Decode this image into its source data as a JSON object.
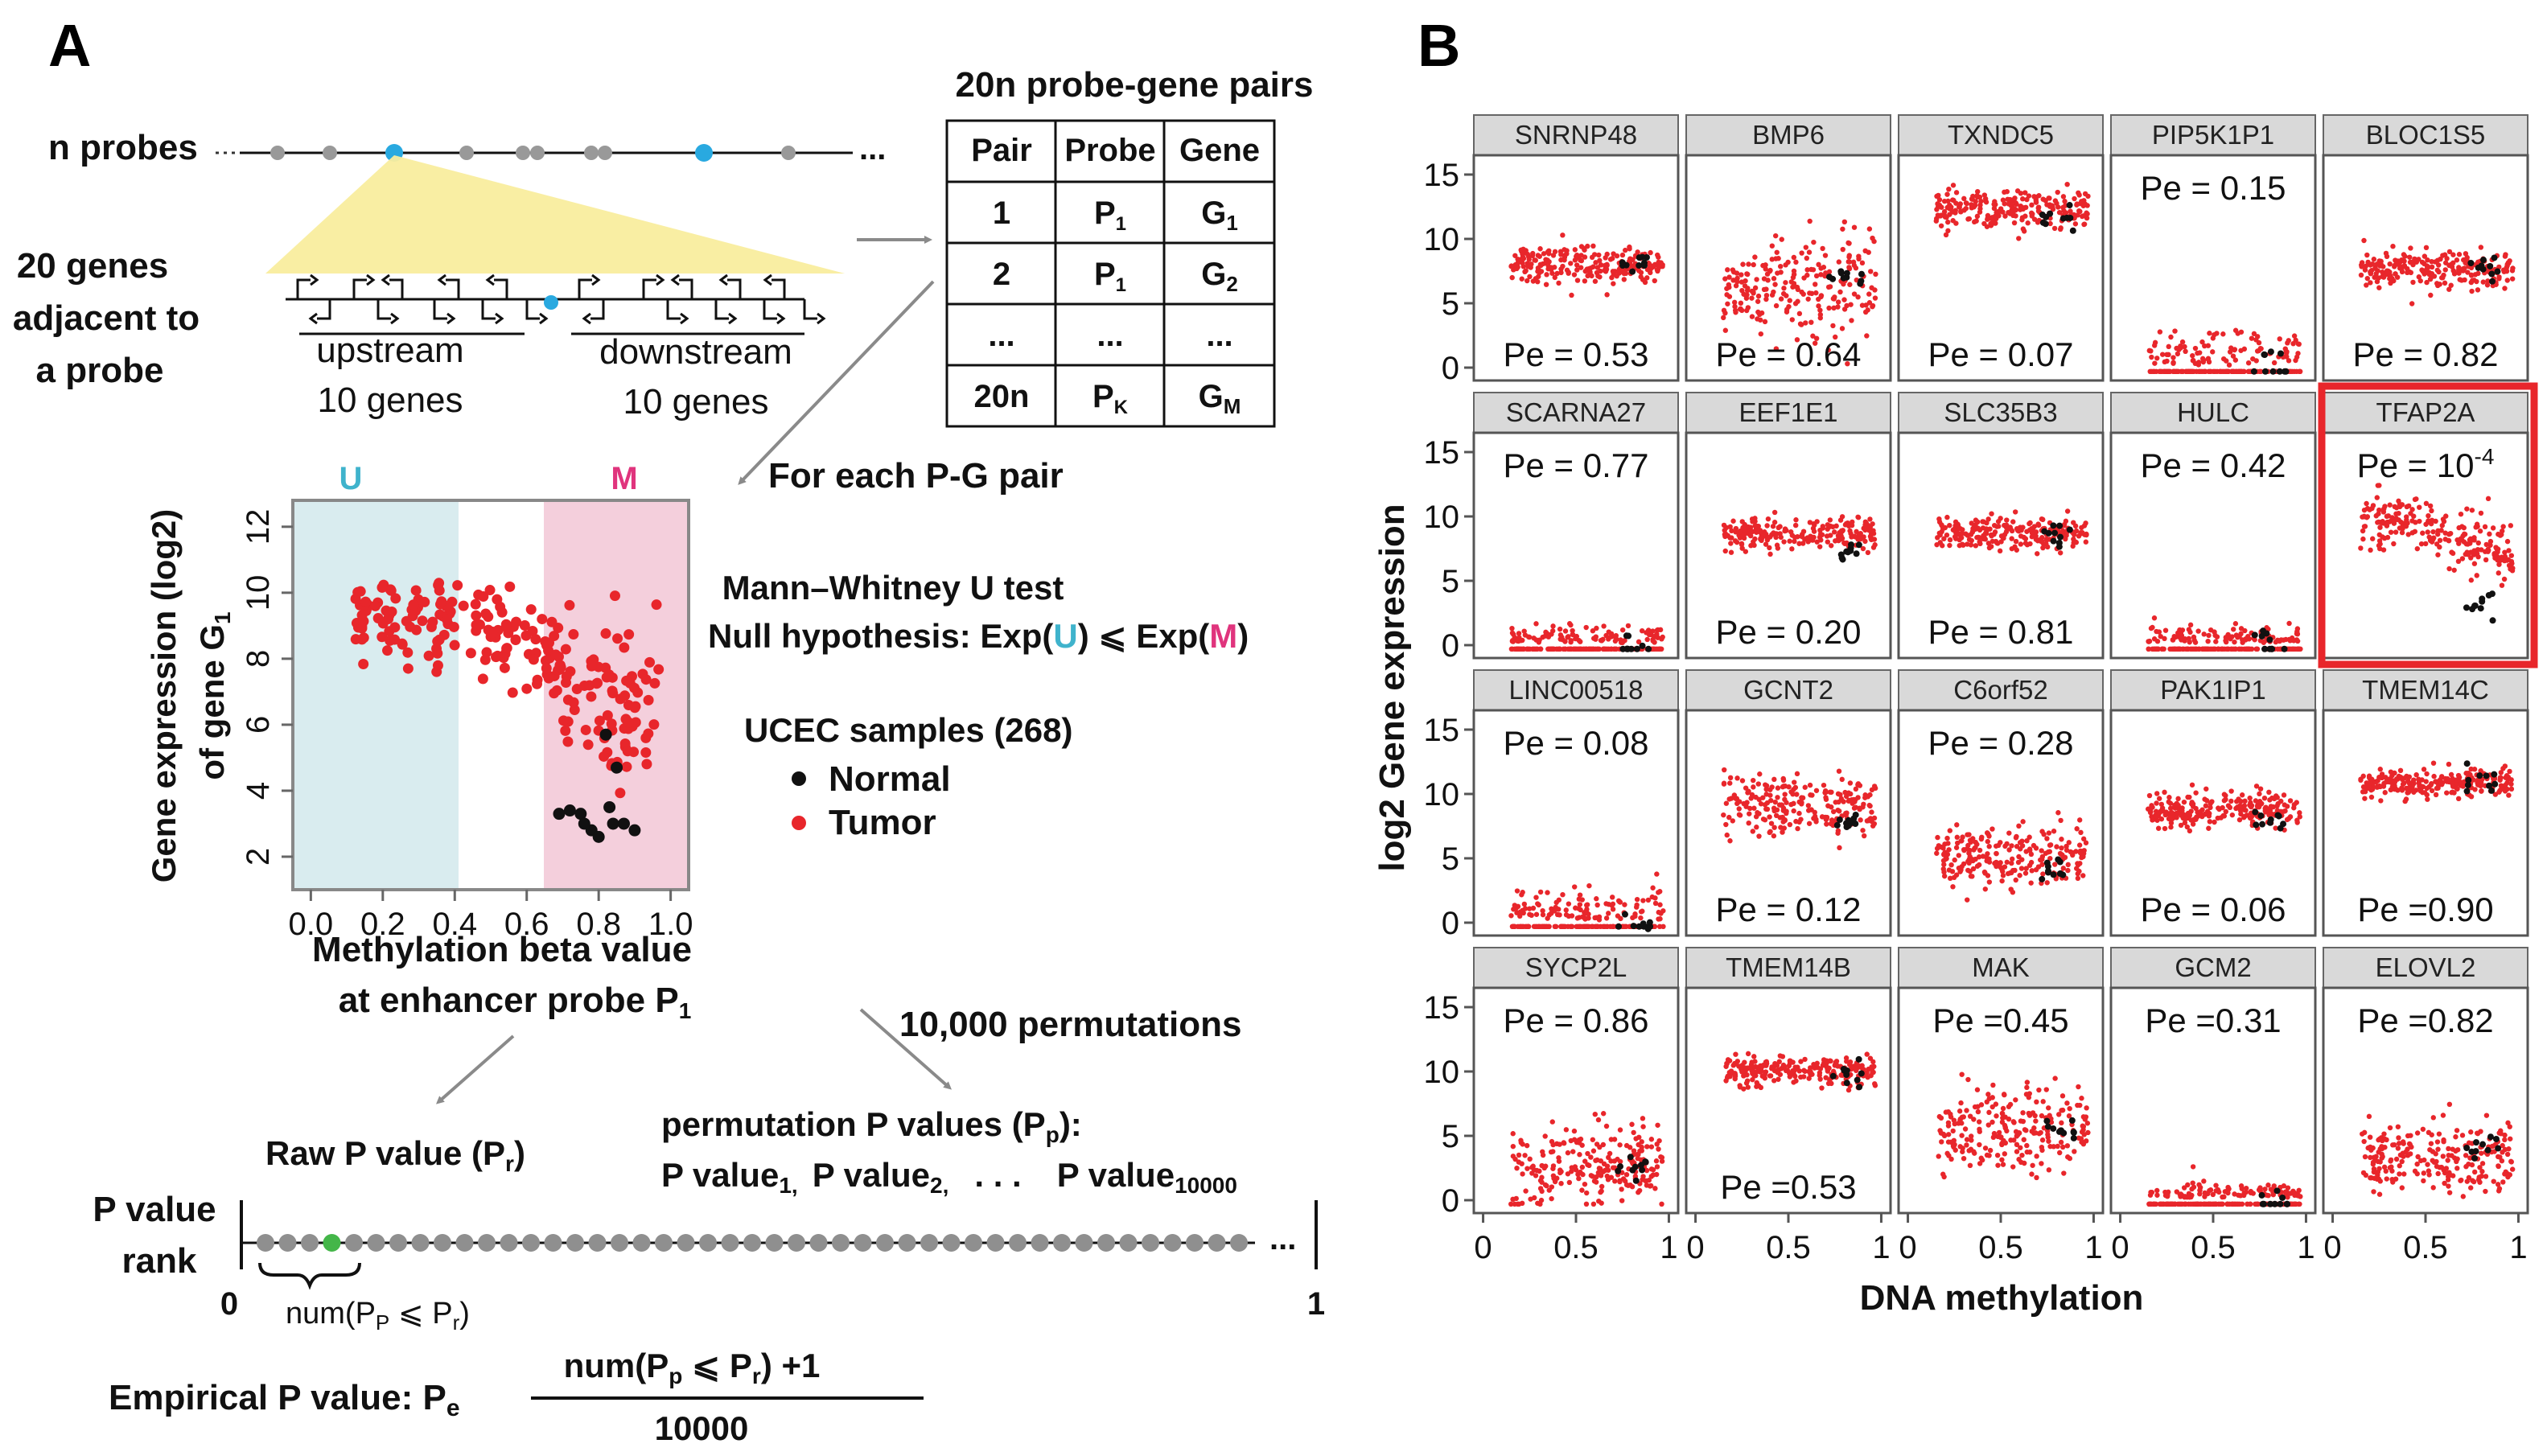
{
  "panel_a": {
    "letter": "A",
    "n_probes_label": "n probes",
    "genes_label_lines": [
      "20 genes",
      "adjacent to",
      "a probe"
    ],
    "upstream_label": "upstream",
    "upstream_count": "10 genes",
    "downstream_label": "downstream",
    "downstream_count": "10 genes",
    "pairs_title": "20n probe-gene pairs",
    "pairs_table": {
      "headers": [
        "Pair",
        "Probe",
        "Gene"
      ],
      "rows": [
        {
          "pair": "1",
          "probe": "P",
          "probe_sub": "1",
          "gene": "G",
          "gene_sub": "1"
        },
        {
          "pair": "2",
          "probe": "P",
          "probe_sub": "1",
          "gene": "G",
          "gene_sub": "2"
        },
        {
          "pair": "...",
          "probe": "...",
          "probe_sub": "",
          "gene": "...",
          "gene_sub": ""
        },
        {
          "pair": "20n",
          "probe": "P",
          "probe_sub": "K",
          "gene": "G",
          "gene_sub": "M"
        }
      ]
    },
    "for_each_label": "For each P-G pair",
    "scatter": {
      "u_label": "U",
      "m_label": "M",
      "ylabel_line1": "Gene expression (log2)",
      "ylabel_line2": "of gene G",
      "ylabel_sub": "1",
      "xlabel_line1": "Methylation beta value",
      "xlabel_line2": "at enhancer probe P",
      "xlabel_sub": "1",
      "x_ticks": [
        "0.0",
        "0.2",
        "0.4",
        "0.6",
        "0.8",
        "1.0"
      ],
      "y_ticks": [
        "2",
        "4",
        "6",
        "8",
        "10",
        "12"
      ]
    },
    "test_title": "Mann–Whitney U test",
    "null_prefix": "Null hypothesis: Exp(",
    "null_u": "U",
    "null_mid": ") ⩽ Exp(",
    "null_m": "M",
    "null_suffix": ")",
    "samples_title": "UCEC samples (268)",
    "legend_normal": "Normal",
    "legend_tumor": "Tumor",
    "permutations_label": "10,000 permutations",
    "raw_p_label": "Raw P value (P",
    "raw_p_sub": "r",
    "raw_p_end": ")",
    "perm_p_label": "permutation P values (P",
    "perm_p_sub": "p",
    "perm_p_end": "):",
    "perm_list": [
      "P value",
      "P value",
      "P value"
    ],
    "perm_list_subs": [
      "1,",
      "2,",
      "10000"
    ],
    "perm_dots": ". . .",
    "rank_label_lines": [
      "P value",
      "rank"
    ],
    "rank_zero": "0",
    "rank_one": "1",
    "rank_ellipsis": "...",
    "num_label": "num(P",
    "num_label_sub": "P",
    "num_label_end": " ⩽ P",
    "num_label_sub2": "r",
    "num_label_close": ")",
    "empirical_label": "Empirical P value:  P",
    "empirical_sub": "e",
    "fraction_num": "num(P",
    "fraction_num_sub": "p",
    "fraction_num_mid": " ⩽ P",
    "fraction_num_sub2": "r",
    "fraction_num_end": ") +1",
    "fraction_den": "10000"
  },
  "panel_b": {
    "letter": "B",
    "ylabel": "log2 Gene expression",
    "xlabel": "DNA methylation",
    "y_ticks": [
      "0",
      "5",
      "10",
      "15"
    ],
    "x_ticks": [
      "0",
      "0.5",
      "1"
    ],
    "highlight_color": "#e8262b",
    "tumor_color": "#e8262b",
    "normal_color": "#111111",
    "panels": [
      {
        "gene": "SNRNP48",
        "pe": "Pe = 0.53",
        "pe_pos": "bottom",
        "tumor_center": 8.0,
        "tumor_spread": 0.7,
        "normal_level": 8.2,
        "slope": 0,
        "highlight": false
      },
      {
        "gene": "BMP6",
        "pe": "Pe = 0.64",
        "pe_pos": "bottom",
        "tumor_center": 6.0,
        "tumor_spread": 2.0,
        "normal_level": 7.0,
        "slope": 0,
        "highlight": false
      },
      {
        "gene": "TXNDC5",
        "pe": "Pe = 0.07",
        "pe_pos": "bottom",
        "tumor_center": 12.3,
        "tumor_spread": 0.8,
        "normal_level": 11.6,
        "slope": 0,
        "highlight": false
      },
      {
        "gene": "PIP5K1P1",
        "pe": "Pe = 0.15",
        "pe_pos": "top",
        "tumor_center": 1.0,
        "tumor_spread": 0.9,
        "normal_level": 1.2,
        "slope": 0,
        "highlight": false
      },
      {
        "gene": "BLOC1S5",
        "pe": "Pe = 0.82",
        "pe_pos": "bottom",
        "tumor_center": 7.6,
        "tumor_spread": 0.7,
        "normal_level": 8.0,
        "slope": 0,
        "highlight": false
      },
      {
        "gene": "SCARNA27",
        "pe": "Pe = 0.77",
        "pe_pos": "top",
        "tumor_center": 0.3,
        "tumor_spread": 0.6,
        "normal_level": 0.4,
        "slope": 0,
        "highlight": false
      },
      {
        "gene": "EEF1E1",
        "pe": "Pe = 0.20",
        "pe_pos": "bottom",
        "tumor_center": 8.6,
        "tumor_spread": 0.6,
        "normal_level": 7.6,
        "slope": 0,
        "highlight": false
      },
      {
        "gene": "SLC35B3",
        "pe": "Pe = 0.81",
        "pe_pos": "bottom",
        "tumor_center": 8.7,
        "tumor_spread": 0.6,
        "normal_level": 8.7,
        "slope": 0,
        "highlight": false
      },
      {
        "gene": "HULC",
        "pe": "Pe = 0.42",
        "pe_pos": "top",
        "tumor_center": 0.4,
        "tumor_spread": 0.6,
        "normal_level": 0.8,
        "slope": 0,
        "highlight": false
      },
      {
        "gene": "TFAP2A",
        "pe": "Pe = 10",
        "pe_sup": "-4",
        "pe_pos": "top",
        "tumor_center": 9.5,
        "tumor_spread": 1.0,
        "normal_level": 3.0,
        "slope": -5.0,
        "highlight": true
      },
      {
        "gene": "LINC00518",
        "pe": "Pe = 0.08",
        "pe_pos": "top",
        "tumor_center": 0.6,
        "tumor_spread": 0.9,
        "normal_level": 0.0,
        "slope": 0,
        "highlight": false
      },
      {
        "gene": "GCNT2",
        "pe": "Pe = 0.12",
        "pe_pos": "bottom",
        "tumor_center": 9.2,
        "tumor_spread": 1.1,
        "normal_level": 7.5,
        "slope": 0,
        "highlight": false
      },
      {
        "gene": "C6orf52",
        "pe": "Pe = 0.28",
        "pe_pos": "top",
        "tumor_center": 5.2,
        "tumor_spread": 1.2,
        "normal_level": 4.5,
        "slope": 0,
        "highlight": false
      },
      {
        "gene": "PAK1IP1",
        "pe": "Pe = 0.06",
        "pe_pos": "bottom",
        "tumor_center": 8.8,
        "tumor_spread": 0.7,
        "normal_level": 8.0,
        "slope": 0,
        "highlight": false
      },
      {
        "gene": "TMEM14C",
        "pe": "Pe =0.90",
        "pe_pos": "bottom",
        "tumor_center": 10.8,
        "tumor_spread": 0.5,
        "normal_level": 11.0,
        "slope": 0,
        "highlight": false
      },
      {
        "gene": "SYCP2L",
        "pe": "Pe = 0.86",
        "pe_pos": "top",
        "tumor_center": 2.5,
        "tumor_spread": 1.5,
        "normal_level": 2.8,
        "slope": 0,
        "highlight": false
      },
      {
        "gene": "TMEM14B",
        "pe": "Pe =0.53",
        "pe_pos": "bottom",
        "tumor_center": 10.0,
        "tumor_spread": 0.6,
        "normal_level": 10.0,
        "slope": 0,
        "highlight": false
      },
      {
        "gene": "MAK",
        "pe": "Pe =0.45",
        "pe_pos": "top",
        "tumor_center": 5.5,
        "tumor_spread": 1.6,
        "normal_level": 5.5,
        "slope": 0,
        "highlight": false
      },
      {
        "gene": "GCM2",
        "pe": "Pe =0.31",
        "pe_pos": "top",
        "tumor_center": 0.0,
        "tumor_spread": 0.5,
        "normal_level": 0.4,
        "slope": 0,
        "highlight": false
      },
      {
        "gene": "ELOVL2",
        "pe": "Pe =0.82",
        "pe_pos": "top",
        "tumor_center": 3.2,
        "tumor_spread": 1.4,
        "normal_level": 4.0,
        "slope": 0,
        "highlight": false
      }
    ]
  }
}
